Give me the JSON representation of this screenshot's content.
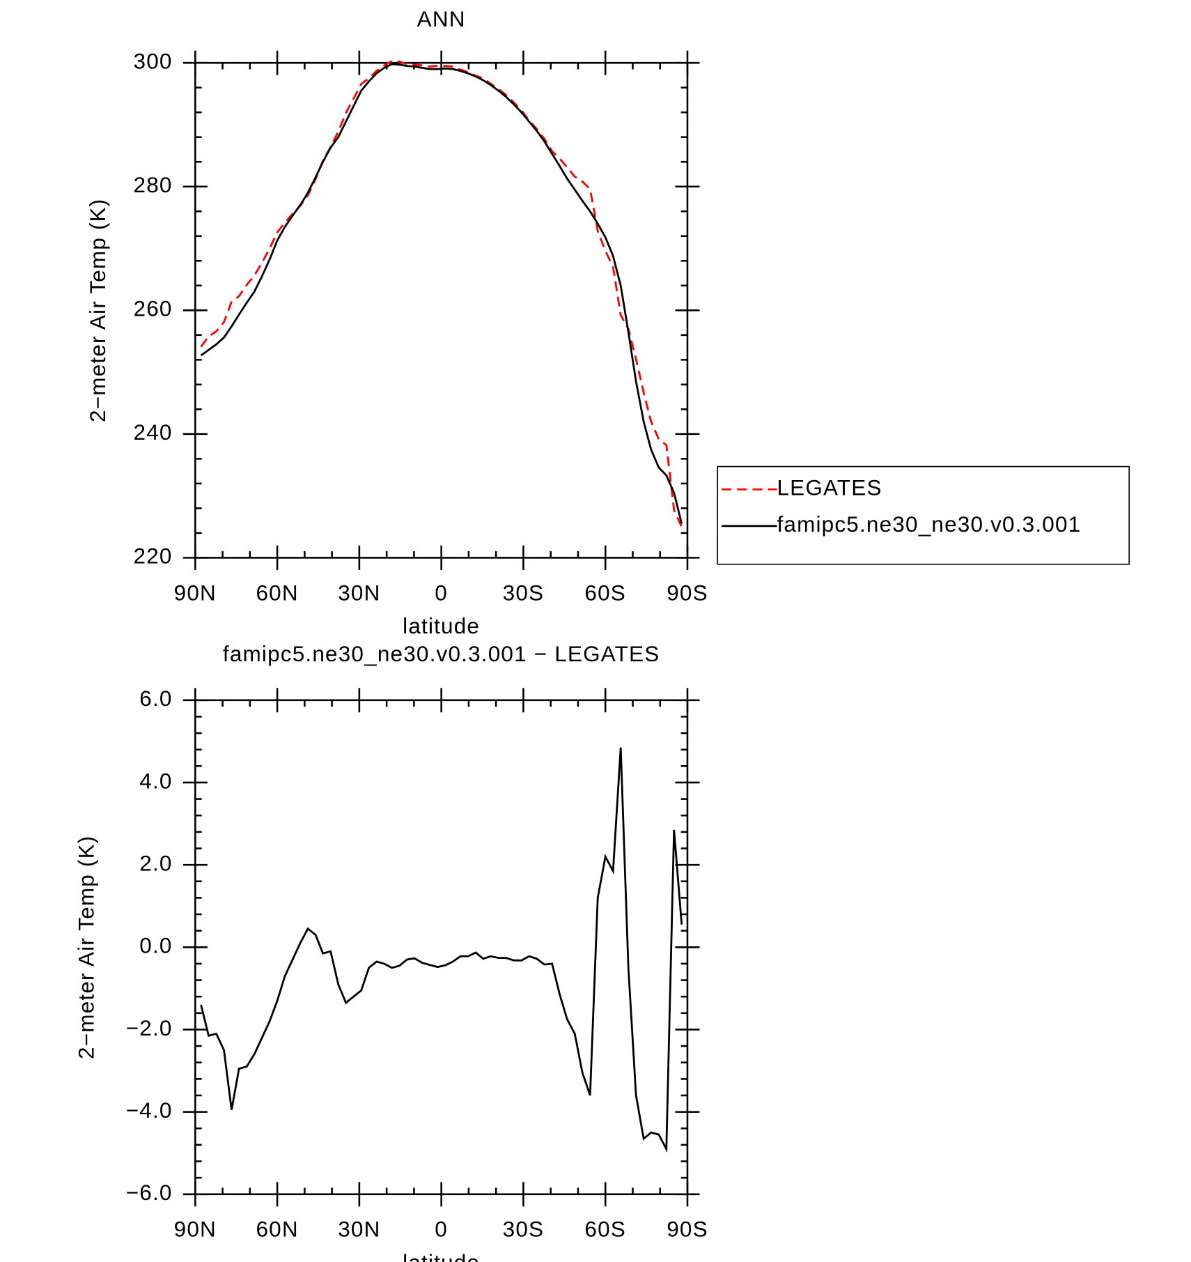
{
  "chart_data": [
    {
      "type": "line",
      "title": "ANN",
      "x_label": "latitude",
      "y_label": "2−meter Air Temp (K)",
      "x": [
        87.9,
        85.1,
        82.3,
        79.5,
        76.7,
        74.0,
        71.2,
        68.4,
        65.6,
        62.8,
        60.0,
        57.2,
        54.4,
        51.6,
        48.8,
        46.0,
        43.3,
        40.5,
        37.7,
        34.9,
        32.1,
        29.3,
        26.5,
        23.7,
        20.9,
        18.1,
        15.3,
        12.6,
        9.8,
        7.0,
        4.2,
        1.4,
        -1.4,
        -4.2,
        -7.0,
        -9.8,
        -12.6,
        -15.3,
        -18.1,
        -20.9,
        -23.7,
        -26.5,
        -29.3,
        -32.1,
        -34.9,
        -37.7,
        -40.5,
        -43.3,
        -46.0,
        -48.8,
        -51.6,
        -54.4,
        -57.2,
        -60.0,
        -62.8,
        -65.6,
        -68.4,
        -71.2,
        -74.0,
        -76.7,
        -79.5,
        -82.3,
        -85.1,
        -87.9
      ],
      "xlim": [
        90,
        -90
      ],
      "xticks": [
        {
          "value": 90,
          "label": "90N"
        },
        {
          "value": 60,
          "label": "60N"
        },
        {
          "value": 30,
          "label": "30N"
        },
        0,
        {
          "value": -30,
          "label": "30S"
        },
        {
          "value": -60,
          "label": "60S"
        },
        {
          "value": -90,
          "label": "90S"
        }
      ],
      "ylim": [
        220,
        300
      ],
      "yticks": [
        220,
        240,
        260,
        280,
        300
      ],
      "legend": "right",
      "series": [
        {
          "name": "LEGATES",
          "color": "#ff0000",
          "dash": "dashed",
          "values": [
            254.1,
            255.8,
            256.6,
            258.1,
            261.4,
            262.3,
            264.1,
            265.6,
            267.7,
            270.0,
            272.6,
            274.2,
            275.6,
            276.9,
            278.6,
            281.2,
            284.2,
            286.4,
            288.9,
            291.9,
            294.2,
            296.6,
            297.5,
            298.7,
            299.6,
            300.3,
            300.2,
            299.8,
            299.7,
            299.6,
            299.4,
            299.5,
            299.5,
            299.4,
            298.9,
            298.5,
            297.9,
            297.5,
            296.6,
            295.8,
            294.8,
            293.6,
            292.3,
            290.7,
            289.3,
            287.7,
            285.7,
            284.5,
            283.1,
            281.6,
            280.8,
            279.6,
            272.8,
            269.6,
            267.0,
            259.2,
            257.0,
            252.1,
            246.7,
            242.0,
            239.2,
            238.2,
            227.7,
            225.0
          ]
        },
        {
          "name": "famipc5.ne30_ne30.v0.3.001",
          "color": "#000000",
          "dash": "solid",
          "values": [
            252.7,
            253.6,
            254.5,
            255.6,
            257.4,
            259.3,
            261.2,
            263.0,
            265.5,
            268.2,
            271.3,
            273.5,
            275.3,
            277.0,
            279.0,
            281.5,
            284.0,
            286.3,
            288.0,
            290.5,
            293.0,
            295.5,
            297.0,
            298.3,
            299.2,
            299.8,
            299.7,
            299.5,
            299.4,
            299.2,
            299.0,
            299.0,
            299.1,
            299.0,
            298.7,
            298.3,
            297.8,
            297.2,
            296.4,
            295.5,
            294.5,
            293.3,
            292.0,
            290.5,
            289.0,
            287.3,
            285.3,
            283.3,
            281.3,
            279.5,
            277.7,
            276.0,
            274.0,
            271.8,
            268.8,
            264.0,
            256.5,
            248.5,
            242.0,
            237.5,
            234.6,
            233.3,
            230.5,
            225.5
          ]
        }
      ]
    },
    {
      "type": "line",
      "title": "famipc5.ne30_ne30.v0.3.001 − LEGATES",
      "x_label": "latitude",
      "y_label": "2−meter Air Temp (K)",
      "x": [
        87.9,
        85.1,
        82.3,
        79.5,
        76.7,
        74.0,
        71.2,
        68.4,
        65.6,
        62.8,
        60.0,
        57.2,
        54.4,
        51.6,
        48.8,
        46.0,
        43.3,
        40.5,
        37.7,
        34.9,
        32.1,
        29.3,
        26.5,
        23.7,
        20.9,
        18.1,
        15.3,
        12.6,
        9.8,
        7.0,
        4.2,
        1.4,
        -1.4,
        -4.2,
        -7.0,
        -9.8,
        -12.6,
        -15.3,
        -18.1,
        -20.9,
        -23.7,
        -26.5,
        -29.3,
        -32.1,
        -34.9,
        -37.7,
        -40.5,
        -43.3,
        -46.0,
        -48.8,
        -51.6,
        -54.4,
        -57.2,
        -60.0,
        -62.8,
        -65.6,
        -68.4,
        -71.2,
        -74.0,
        -76.7,
        -79.5,
        -82.3,
        -85.1,
        -87.9
      ],
      "xlim": [
        90,
        -90
      ],
      "xticks": [
        {
          "value": 90,
          "label": "90N"
        },
        {
          "value": 60,
          "label": "60N"
        },
        {
          "value": 30,
          "label": "30N"
        },
        0,
        {
          "value": -30,
          "label": "30S"
        },
        {
          "value": -60,
          "label": "60S"
        },
        {
          "value": -90,
          "label": "90S"
        }
      ],
      "ylim": [
        -6,
        6
      ],
      "yticks": [
        {
          "value": -6,
          "label": "−6.0"
        },
        {
          "value": -4,
          "label": "−4.0"
        },
        {
          "value": -2,
          "label": "−2.0"
        },
        {
          "value": 0,
          "label": "0.0"
        },
        {
          "value": 2,
          "label": "2.0"
        },
        {
          "value": 4,
          "label": "4.0"
        },
        {
          "value": 6,
          "label": "6.0"
        }
      ],
      "series": [
        {
          "color": "#000000",
          "dash": "solid",
          "values": [
            -1.4,
            -2.15,
            -2.1,
            -2.5,
            -3.95,
            -2.95,
            -2.9,
            -2.6,
            -2.2,
            -1.8,
            -1.3,
            -0.7,
            -0.3,
            0.1,
            0.45,
            0.3,
            -0.15,
            -0.1,
            -0.9,
            -1.35,
            -1.2,
            -1.05,
            -0.5,
            -0.35,
            -0.4,
            -0.5,
            -0.45,
            -0.3,
            -0.27,
            -0.38,
            -0.43,
            -0.48,
            -0.44,
            -0.35,
            -0.22,
            -0.22,
            -0.13,
            -0.28,
            -0.22,
            -0.26,
            -0.26,
            -0.32,
            -0.32,
            -0.22,
            -0.28,
            -0.42,
            -0.4,
            -1.15,
            -1.75,
            -2.1,
            -3.05,
            -3.6,
            1.2,
            2.2,
            1.85,
            4.85,
            -0.5,
            -3.6,
            -4.65,
            -4.5,
            -4.55,
            -4.9,
            2.85,
            0.55
          ]
        }
      ]
    }
  ]
}
